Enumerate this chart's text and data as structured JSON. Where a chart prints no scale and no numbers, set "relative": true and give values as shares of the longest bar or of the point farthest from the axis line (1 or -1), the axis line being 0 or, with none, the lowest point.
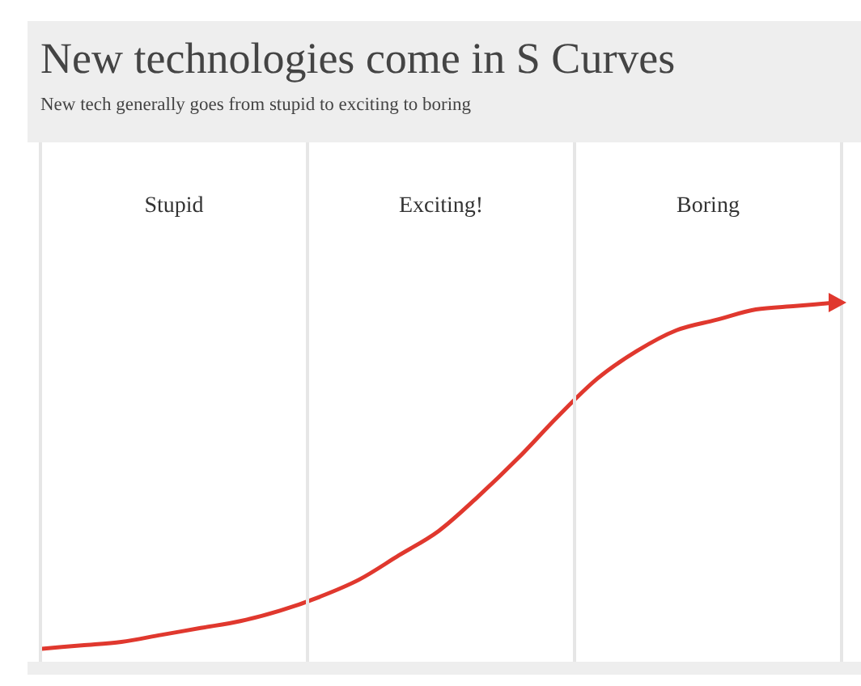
{
  "chart_data": {
    "type": "line",
    "title": "New technologies come in S Curves",
    "subtitle": "New tech generally goes from stupid to exciting to boring",
    "relative": true,
    "categories": [
      null,
      null,
      null,
      null,
      null,
      null,
      null,
      null,
      null,
      null,
      null,
      null,
      null,
      null,
      null,
      null,
      null,
      null,
      null,
      null,
      null
    ],
    "series": [
      {
        "color": "#e0382e",
        "values": [
          0,
          0.01,
          0.02,
          0.04,
          0.06,
          0.08,
          0.11,
          0.15,
          0.2,
          0.27,
          0.34,
          0.44,
          0.55,
          0.67,
          0.78,
          0.86,
          0.92,
          0.95,
          0.98,
          0.99,
          1
        ]
      }
    ],
    "annotations": [
      "Stupid",
      "Exciting!",
      "Boring"
    ],
    "legend": false,
    "marker": "none",
    "line_style": "solid"
  }
}
